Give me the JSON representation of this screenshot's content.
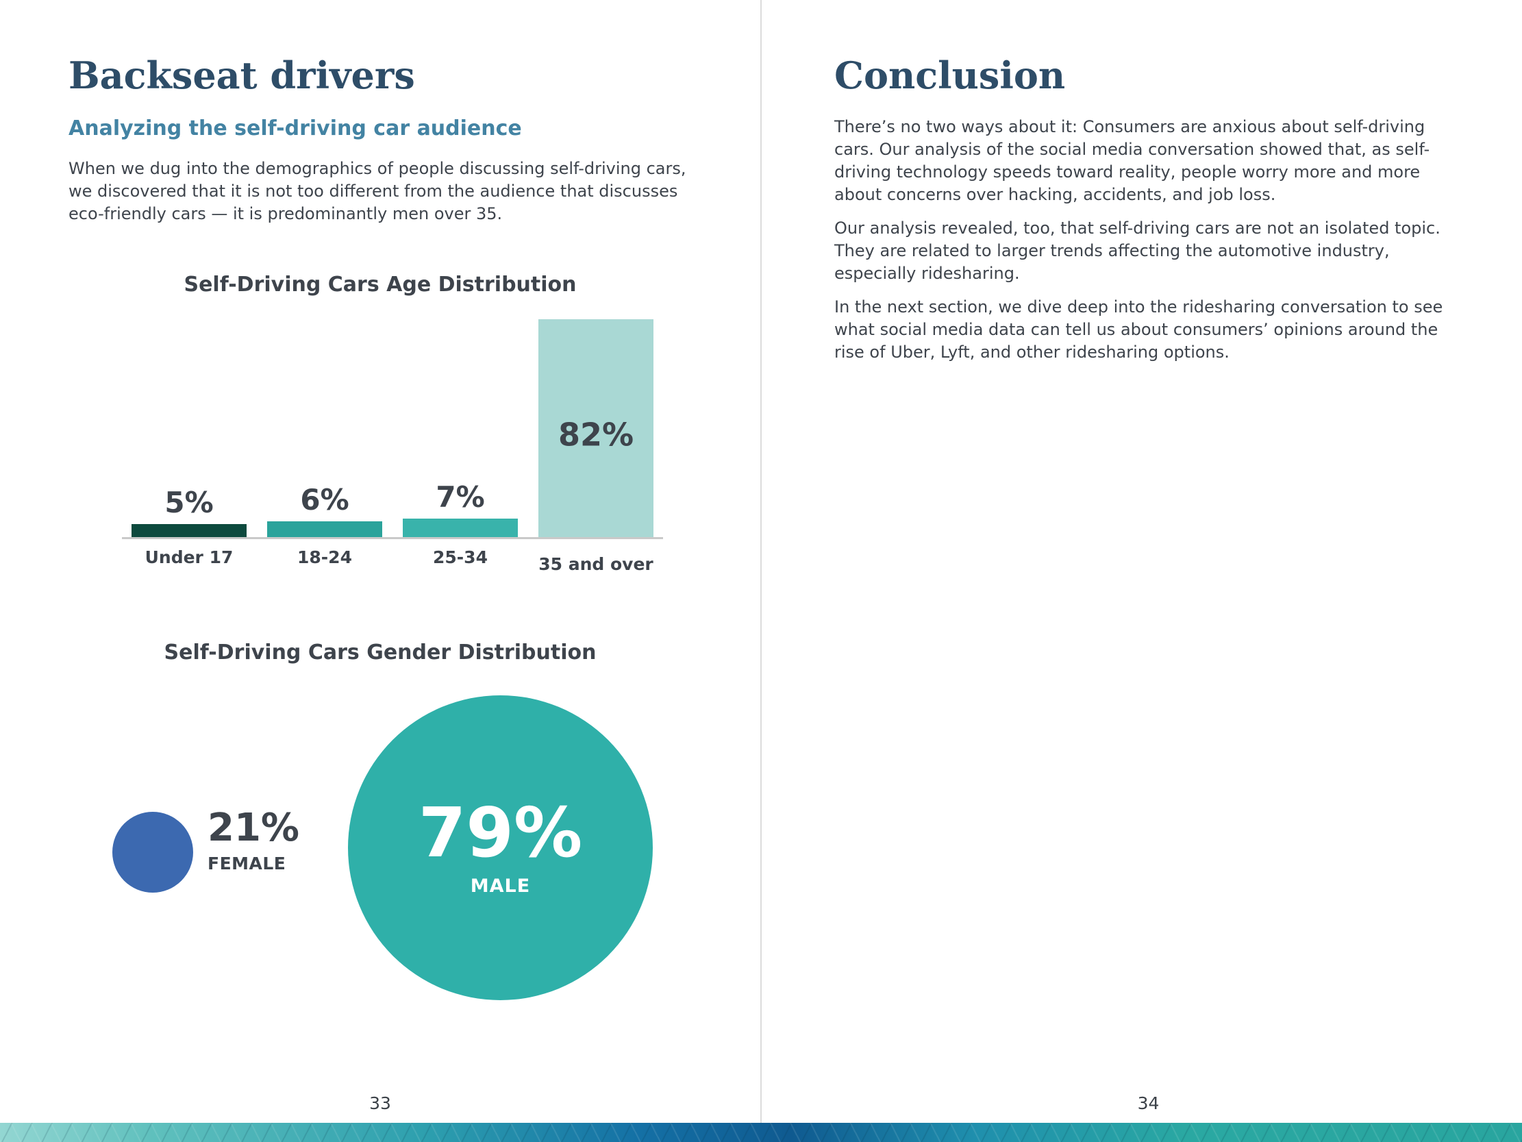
{
  "left_page": {
    "title": "Backseat drivers",
    "subtitle": "Analyzing the self-driving car audience",
    "intro": "When we dug into the demographics of people discussing self-driving cars, we discovered that it is not too different from the audience that discusses eco-friendly cars — it is predominantly men over 35.",
    "page_number": "33"
  },
  "right_page": {
    "title": "Conclusion",
    "paragraphs": [
      "There’s no two ways about it: Consumers are anxious about self-driving cars. Our analysis of the social media conversation showed that, as self-driving technology speeds toward reality, people worry more and more about concerns over hacking, accidents, and job loss.",
      "Our analysis revealed, too, that self-driving cars are not an isolated topic. They are related to larger trends affecting the automotive industry, especially ridesharing.",
      "In the next section, we dive deep into the ridesharing conversation to see what social media data can tell us about consumers’ opinions around the rise of Uber, Lyft, and other ridesharing options."
    ],
    "page_number": "34"
  },
  "chart_data": [
    {
      "type": "bar",
      "title": "Self-Driving Cars Age Distribution",
      "categories": [
        "Under 17",
        "18-24",
        "25-34",
        "35 and over"
      ],
      "values": [
        5,
        6,
        7,
        82
      ],
      "data_labels": [
        "5%",
        "6%",
        "7%",
        "82%"
      ],
      "bar_colors": [
        "#0d4a3e",
        "#2aa39b",
        "#39b3ab",
        "#a9d8d4"
      ],
      "xlabel": "",
      "ylabel": "",
      "ylim": [
        0,
        100
      ],
      "grid": false,
      "legend": false
    },
    {
      "type": "pie",
      "style": "proportional-circles",
      "title": "Self-Driving Cars Gender Distribution",
      "segments": [
        {
          "label": "FEMALE",
          "value": 21,
          "display": "21%",
          "color": "#3c69b0"
        },
        {
          "label": "MALE",
          "value": 79,
          "display": "79%",
          "color": "#2fb0a9"
        }
      ]
    }
  ],
  "colors": {
    "heading": "#2e4d68",
    "subtitle": "#4383a3",
    "body_text": "#3e444c",
    "divider": "#dcdcdc",
    "axis_line": "#c9c9c9"
  }
}
